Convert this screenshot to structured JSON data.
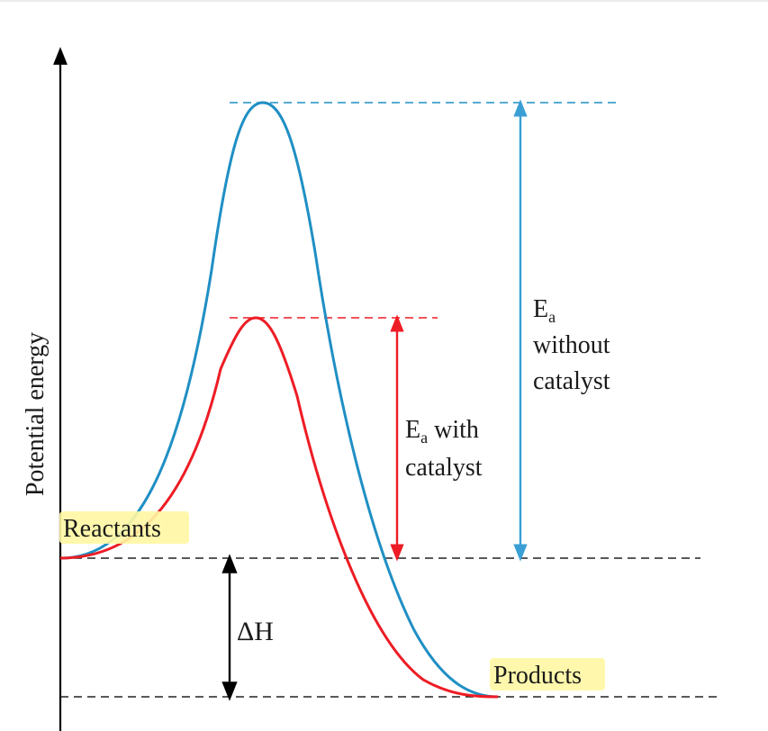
{
  "diagram": {
    "y_axis_label": "Potential energy",
    "reactants_label": "Reactants",
    "products_label": "Products",
    "delta_h_label": "ΔH",
    "ea_with_catalyst": {
      "symbol": "E",
      "subscript": "a",
      "line1_suffix": " with",
      "line2": "catalyst"
    },
    "ea_without_catalyst": {
      "symbol": "E",
      "subscript": "a",
      "line2": "without",
      "line3": "catalyst"
    }
  },
  "colors": {
    "uncatalyzed": "#1f8fc4",
    "catalyzed": "#ee1c24",
    "axis": "#000000",
    "highlight": "#fff7a3"
  }
}
